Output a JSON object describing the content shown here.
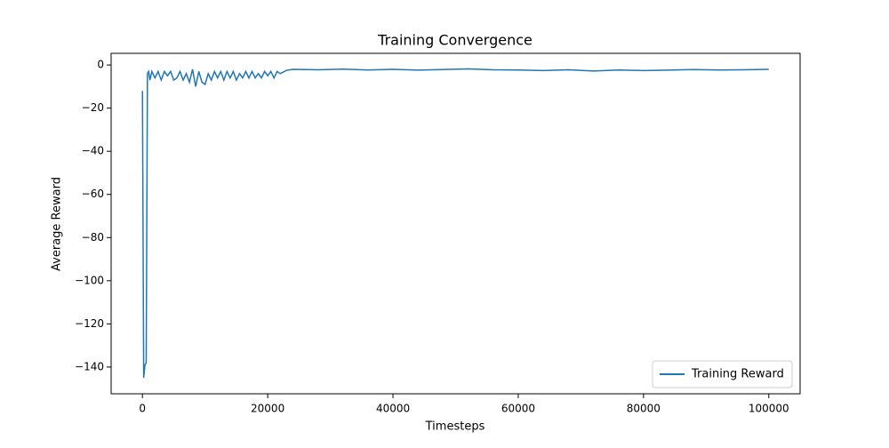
{
  "chart_data": {
    "type": "line",
    "title": "Training Convergence",
    "x_label": "Timesteps",
    "y_label": "Average Reward",
    "x": [
      0,
      200,
      400,
      600,
      800,
      1000,
      1200,
      1500,
      2000,
      2500,
      3000,
      3500,
      4000,
      4500,
      5000,
      5500,
      6000,
      6500,
      7000,
      7500,
      8000,
      8500,
      9000,
      9500,
      10000,
      10500,
      11000,
      11500,
      12000,
      12500,
      13000,
      13500,
      14000,
      14500,
      15000,
      15500,
      16000,
      16500,
      17000,
      17500,
      18000,
      18500,
      19000,
      19500,
      20000,
      20500,
      21000,
      21500,
      22000,
      23000,
      24000,
      28000,
      32000,
      36000,
      40000,
      44000,
      48000,
      52000,
      56000,
      60000,
      64000,
      68000,
      72000,
      76000,
      80000,
      84000,
      88000,
      92000,
      96000,
      100000
    ],
    "series": [
      {
        "name": "Training Reward",
        "color": "#1f77b4",
        "values": [
          -12,
          -145,
          -139,
          -138,
          -4,
          -3,
          -7,
          -3,
          -6,
          -3,
          -7,
          -3,
          -5,
          -3,
          -7,
          -6,
          -3,
          -7,
          -4,
          -8,
          -2,
          -10,
          -3,
          -8,
          -9,
          -4,
          -7,
          -3,
          -6,
          -3,
          -7,
          -3,
          -6,
          -3,
          -7,
          -4,
          -6,
          -3,
          -6,
          -3,
          -6,
          -4,
          -6,
          -3,
          -5,
          -3,
          -6,
          -3,
          -4,
          -2.5,
          -2,
          -2.2,
          -1.9,
          -2.3,
          -2,
          -2.4,
          -2.1,
          -1.8,
          -2.2,
          -2.3,
          -2.6,
          -2.2,
          -2.8,
          -2.3,
          -2.6,
          -2.4,
          -2.1,
          -2.3,
          -2.2,
          -2
        ]
      }
    ],
    "xlim": [
      -5000,
      105000
    ],
    "ylim": [
      -152.4,
      5.4
    ],
    "xticks": [
      0,
      20000,
      40000,
      60000,
      80000,
      100000
    ],
    "yticks": [
      {
        "value": -140,
        "label": "−140"
      },
      {
        "value": -120,
        "label": "−120"
      },
      {
        "value": -100,
        "label": "−100"
      },
      {
        "value": -80,
        "label": "−80"
      },
      {
        "value": -60,
        "label": "−60"
      },
      {
        "value": -40,
        "label": "−40"
      },
      {
        "value": -20,
        "label": "−20"
      },
      0
    ],
    "legend": "lower right",
    "grid": false
  }
}
